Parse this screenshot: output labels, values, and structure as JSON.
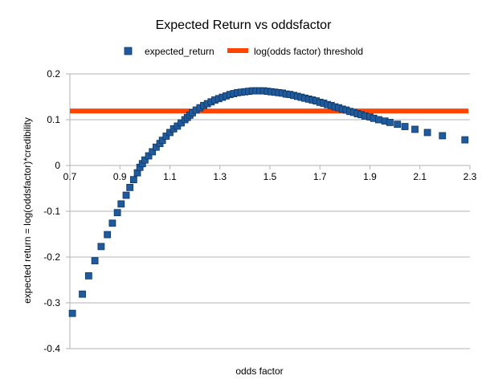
{
  "chart_data": {
    "type": "scatter",
    "title": "Expected Return vs oddsfactor",
    "xlabel": "odds factor",
    "ylabel": "expected return = log(oddsfactor)*credibility",
    "xlim": [
      0.7,
      2.3
    ],
    "ylim": [
      -0.4,
      0.2
    ],
    "x_ticks": [
      "0.7",
      "0.9",
      "1.1",
      "1.3",
      "1.5",
      "1.7",
      "1.9",
      "2.1",
      "2.3"
    ],
    "y_ticks": [
      "0.2",
      "0.1",
      "0",
      "-0.1",
      "-0.2",
      "-0.3",
      "-0.4"
    ],
    "grid": "horizontal",
    "legend_position": "top",
    "series": [
      {
        "name": "expected_return",
        "kind": "scatter",
        "marker": "square",
        "color": "#1f5a9c",
        "points": [
          [
            0.71,
            -0.323
          ],
          [
            0.75,
            -0.281
          ],
          [
            0.775,
            -0.241
          ],
          [
            0.8,
            -0.208
          ],
          [
            0.825,
            -0.177
          ],
          [
            0.85,
            -0.151
          ],
          [
            0.87,
            -0.126
          ],
          [
            0.89,
            -0.103
          ],
          [
            0.905,
            -0.084
          ],
          [
            0.925,
            -0.065
          ],
          [
            0.94,
            -0.048
          ],
          [
            0.955,
            -0.031
          ],
          [
            0.97,
            -0.016
          ],
          [
            0.98,
            -0.004
          ],
          [
            0.99,
            0.004
          ],
          [
            1.0,
            0.012
          ],
          [
            1.015,
            0.021
          ],
          [
            1.03,
            0.03
          ],
          [
            1.045,
            0.04
          ],
          [
            1.06,
            0.048
          ],
          [
            1.07,
            0.055
          ],
          [
            1.085,
            0.064
          ],
          [
            1.1,
            0.072
          ],
          [
            1.115,
            0.08
          ],
          [
            1.13,
            0.086
          ],
          [
            1.145,
            0.093
          ],
          [
            1.16,
            0.1
          ],
          [
            1.17,
            0.105
          ],
          [
            1.18,
            0.11
          ],
          [
            1.19,
            0.115
          ],
          [
            1.205,
            0.121
          ],
          [
            1.22,
            0.126
          ],
          [
            1.235,
            0.131
          ],
          [
            1.25,
            0.135
          ],
          [
            1.265,
            0.139
          ],
          [
            1.28,
            0.143
          ],
          [
            1.295,
            0.146
          ],
          [
            1.31,
            0.149
          ],
          [
            1.325,
            0.152
          ],
          [
            1.34,
            0.155
          ],
          [
            1.355,
            0.157
          ],
          [
            1.37,
            0.159
          ],
          [
            1.385,
            0.16
          ],
          [
            1.4,
            0.161
          ],
          [
            1.415,
            0.162
          ],
          [
            1.43,
            0.163
          ],
          [
            1.445,
            0.163
          ],
          [
            1.46,
            0.163
          ],
          [
            1.475,
            0.163
          ],
          [
            1.49,
            0.162
          ],
          [
            1.505,
            0.161
          ],
          [
            1.52,
            0.16
          ],
          [
            1.535,
            0.159
          ],
          [
            1.55,
            0.158
          ],
          [
            1.565,
            0.156
          ],
          [
            1.58,
            0.155
          ],
          [
            1.595,
            0.153
          ],
          [
            1.61,
            0.151
          ],
          [
            1.625,
            0.149
          ],
          [
            1.64,
            0.147
          ],
          [
            1.655,
            0.145
          ],
          [
            1.67,
            0.143
          ],
          [
            1.685,
            0.141
          ],
          [
            1.7,
            0.138
          ],
          [
            1.715,
            0.136
          ],
          [
            1.73,
            0.133
          ],
          [
            1.745,
            0.131
          ],
          [
            1.76,
            0.128
          ],
          [
            1.775,
            0.126
          ],
          [
            1.79,
            0.123
          ],
          [
            1.805,
            0.121
          ],
          [
            1.82,
            0.118
          ],
          [
            1.835,
            0.116
          ],
          [
            1.85,
            0.113
          ],
          [
            1.865,
            0.111
          ],
          [
            1.88,
            0.108
          ],
          [
            1.9,
            0.106
          ],
          [
            1.915,
            0.103
          ],
          [
            1.935,
            0.1
          ],
          [
            1.96,
            0.097
          ],
          [
            1.98,
            0.094
          ],
          [
            2.01,
            0.09
          ],
          [
            2.04,
            0.085
          ],
          [
            2.08,
            0.079
          ],
          [
            2.13,
            0.072
          ],
          [
            2.19,
            0.065
          ],
          [
            2.28,
            0.056
          ]
        ]
      },
      {
        "name": "log(odds factor) threshold",
        "kind": "line",
        "color": "#ff4500",
        "value": 0.119
      }
    ]
  }
}
